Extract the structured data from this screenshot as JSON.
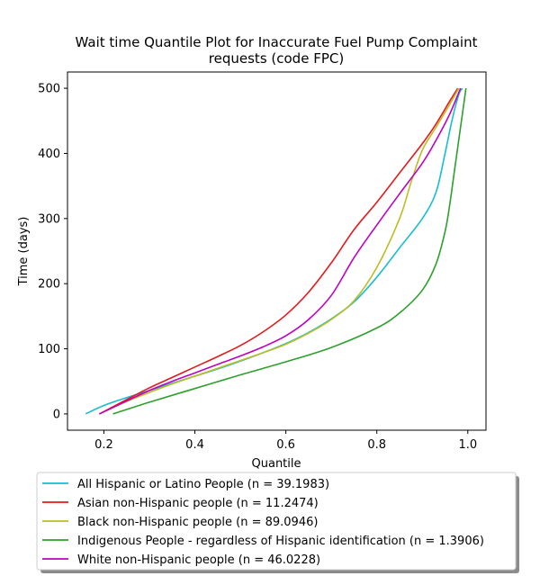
{
  "chart_data": {
    "type": "line",
    "title_line1": "Wait time Quantile Plot for Inaccurate Fuel Pump Complaint",
    "title_line2": "requests (code FPC)",
    "xlabel": "Quantile",
    "ylabel": "Time (days)",
    "xlim": [
      0.12,
      1.04
    ],
    "ylim": [
      -25,
      525
    ],
    "x_ticks": [
      0.2,
      0.4,
      0.6,
      0.8,
      1.0
    ],
    "x_tick_labels": [
      "0.2",
      "0.4",
      "0.6",
      "0.8",
      "1.0"
    ],
    "y_ticks": [
      0,
      100,
      200,
      300,
      400,
      500
    ],
    "y_tick_labels": [
      "0",
      "100",
      "200",
      "300",
      "400",
      "500"
    ],
    "grid": false,
    "legend_placement": "below",
    "series": [
      {
        "name": "All Hispanic or Latino People (n = 39.1983)",
        "color": "#17becf",
        "x": [
          0.16,
          0.2,
          0.25,
          0.3,
          0.35,
          0.4,
          0.45,
          0.5,
          0.55,
          0.6,
          0.65,
          0.7,
          0.75,
          0.8,
          0.85,
          0.9,
          0.93,
          0.95,
          0.965,
          0.98,
          0.988
        ],
        "y": [
          0,
          13,
          25,
          36,
          47,
          58,
          69,
          81,
          94,
          108,
          125,
          146,
          172,
          210,
          255,
          300,
          340,
          400,
          450,
          490,
          500
        ]
      },
      {
        "name": "Asian non-Hispanic people (n = 11.2474)",
        "color": "#e41a1c",
        "x": [
          0.19,
          0.25,
          0.3,
          0.35,
          0.4,
          0.45,
          0.5,
          0.55,
          0.6,
          0.65,
          0.7,
          0.75,
          0.8,
          0.85,
          0.9,
          0.93,
          0.96,
          0.978
        ],
        "y": [
          0,
          22,
          40,
          56,
          72,
          88,
          105,
          126,
          152,
          187,
          232,
          283,
          325,
          370,
          415,
          445,
          480,
          500
        ]
      },
      {
        "name": "Black non-Hispanic people (n = 89.0946)",
        "color": "#bcbd22",
        "x": [
          0.19,
          0.25,
          0.3,
          0.35,
          0.4,
          0.45,
          0.5,
          0.55,
          0.6,
          0.65,
          0.7,
          0.75,
          0.8,
          0.85,
          0.875,
          0.9,
          0.93,
          0.96,
          0.98
        ],
        "y": [
          0,
          19,
          33,
          46,
          58,
          70,
          82,
          94,
          107,
          124,
          145,
          174,
          225,
          300,
          355,
          405,
          440,
          475,
          500
        ]
      },
      {
        "name": "Indigenous People - regardless of Hispanic identification (n = 1.3906)",
        "color": "#2ca02c",
        "x": [
          0.22,
          0.3,
          0.4,
          0.5,
          0.6,
          0.7,
          0.8,
          0.85,
          0.9,
          0.93,
          0.95,
          0.96,
          0.97,
          0.98,
          0.99,
          0.996
        ],
        "y": [
          0,
          18,
          39,
          60,
          80,
          102,
          132,
          155,
          190,
          230,
          280,
          320,
          370,
          420,
          470,
          500
        ]
      },
      {
        "name": "White non-Hispanic people (n = 46.0228)",
        "color": "#bf00bf",
        "x": [
          0.19,
          0.25,
          0.3,
          0.35,
          0.4,
          0.45,
          0.5,
          0.55,
          0.6,
          0.65,
          0.7,
          0.75,
          0.8,
          0.85,
          0.9,
          0.93,
          0.96,
          0.984
        ],
        "y": [
          0,
          20,
          36,
          50,
          63,
          76,
          89,
          103,
          120,
          145,
          182,
          240,
          290,
          338,
          385,
          420,
          460,
          500
        ]
      }
    ]
  }
}
